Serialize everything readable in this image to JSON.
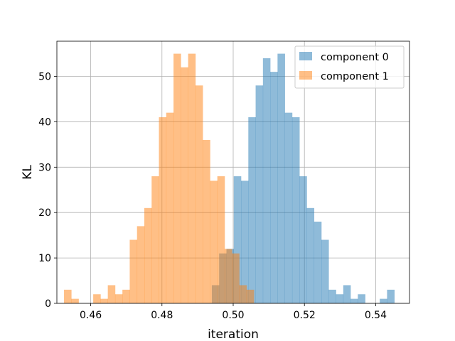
{
  "chart_data": {
    "type": "bar",
    "subtype": "overlapping-histogram",
    "xlabel": "iteration",
    "ylabel": "KL",
    "xlim": [
      0.4505,
      0.5495
    ],
    "ylim": [
      0,
      57.75
    ],
    "grid": true,
    "legend_placement": "top-right",
    "x_ticks": [
      "0.46",
      "0.48",
      "0.50",
      "0.52",
      "0.54"
    ],
    "x_tick_values": [
      0.46,
      0.48,
      0.5,
      0.52,
      0.54
    ],
    "y_ticks": [
      "0",
      "10",
      "20",
      "30",
      "40",
      "50"
    ],
    "y_tick_values": [
      0,
      10,
      20,
      30,
      40,
      50
    ],
    "series": [
      {
        "name": "component 0",
        "color": "#1f77b4",
        "alpha": 0.5,
        "bin_start": 0.494,
        "bin_width": 0.00205,
        "values": [
          4,
          11,
          12,
          28,
          27,
          41,
          48,
          54,
          51,
          55,
          42,
          41,
          28,
          21,
          18,
          14,
          3,
          2,
          4,
          1,
          2,
          0,
          0,
          1,
          3
        ]
      },
      {
        "name": "component 1",
        "color": "#ff7f0e",
        "alpha": 0.5,
        "bin_start": 0.4525,
        "bin_width": 0.00205,
        "values": [
          3,
          1,
          0,
          0,
          2,
          1,
          4,
          2,
          3,
          14,
          17,
          21,
          28,
          41,
          42,
          55,
          52,
          55,
          48,
          36,
          27,
          28,
          12,
          11,
          4,
          3
        ]
      }
    ]
  },
  "legend": {
    "items": [
      {
        "label": "component 0",
        "color": "#1f77b4"
      },
      {
        "label": "component 1",
        "color": "#ff7f0e"
      }
    ]
  }
}
